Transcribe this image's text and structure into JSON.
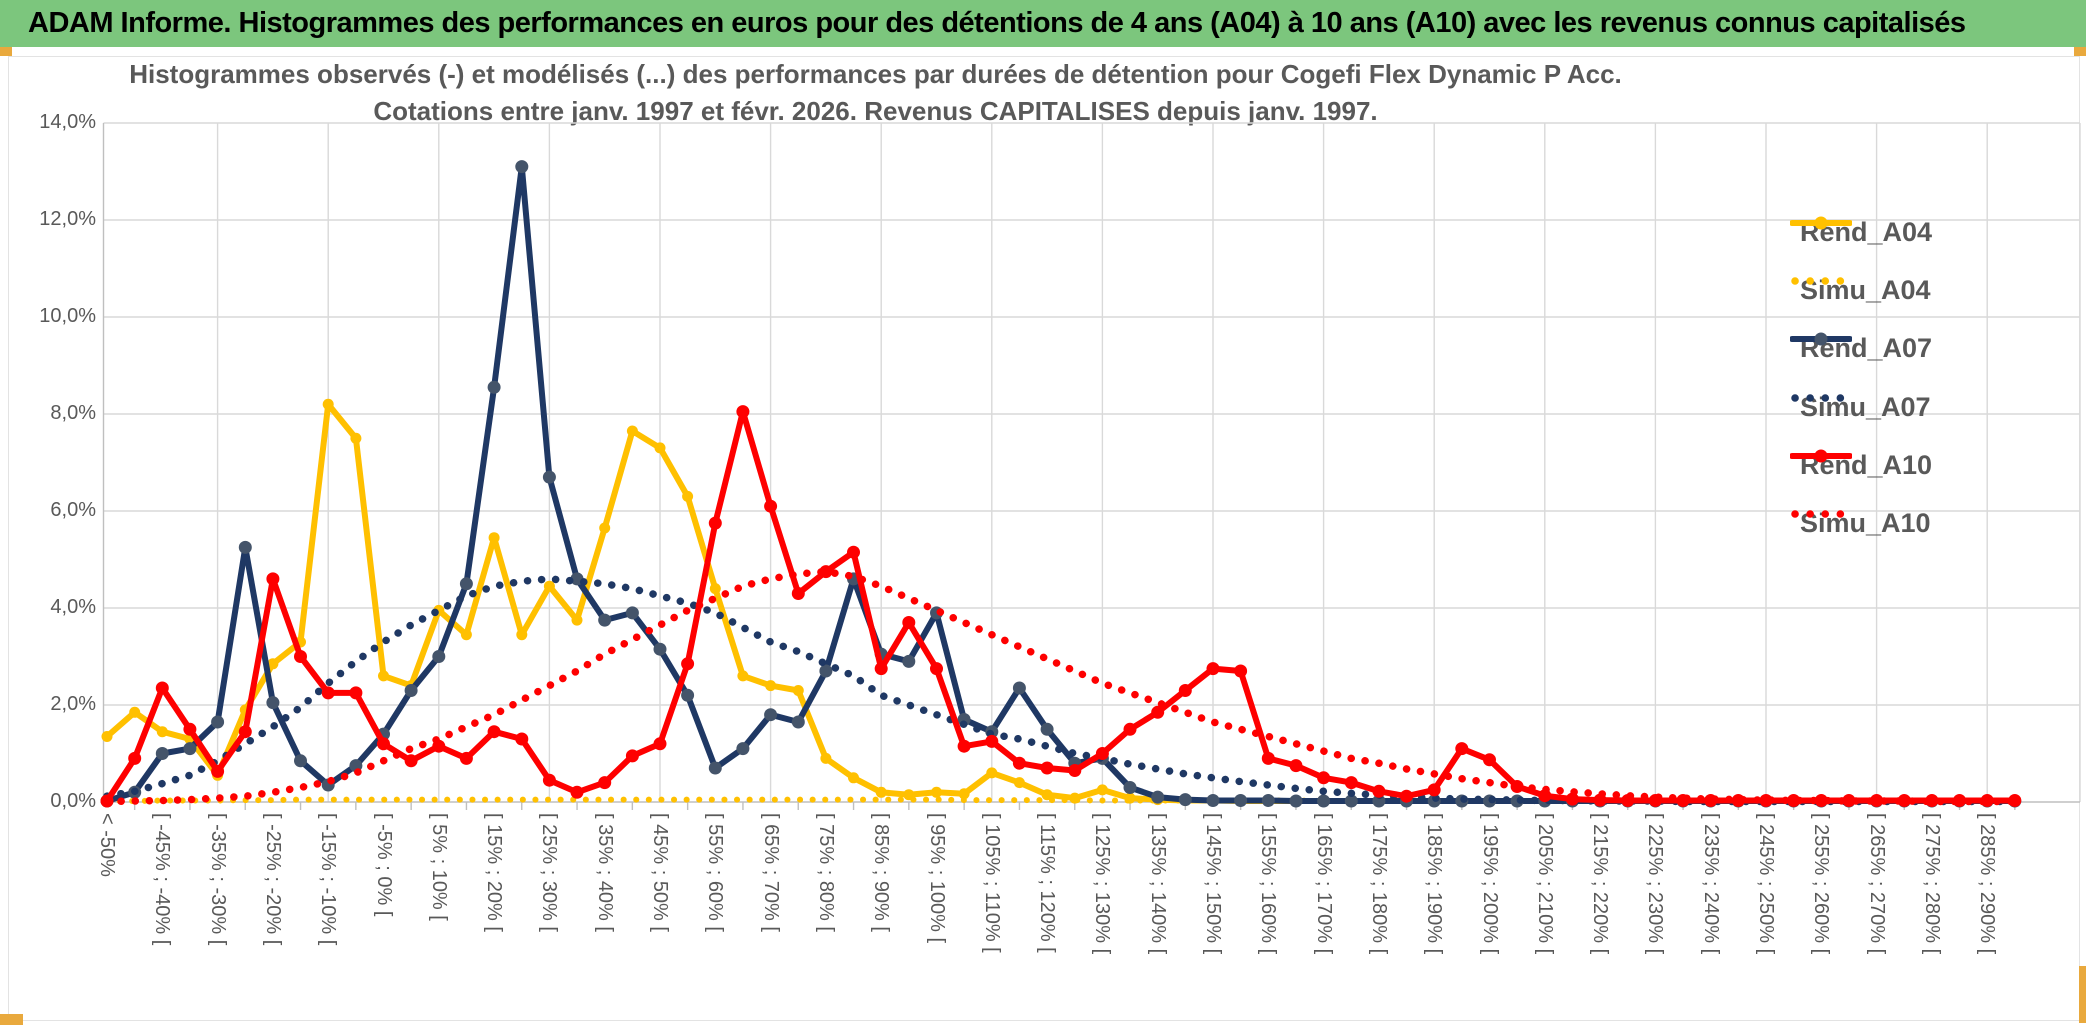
{
  "banner": {
    "title": "ADAM Informe. Histogrammes des performances en euros pour des détentions de 4 ans (A04) à 10 ans (A10) avec les revenus connus capitalisés"
  },
  "chart_data": {
    "type": "line",
    "title_line1": "Histogrammes observés (-) et modélisés (...) des performances par durées de détention pour Cogefi Flex Dynamic P Acc.",
    "title_line2": "Cotations entre janv. 1997 et févr. 2026. Revenus CAPITALISES depuis janv. 1997.",
    "ylabel": "",
    "xlabel": "",
    "ylim": [
      0,
      14
    ],
    "grid": true,
    "legend_position": "right",
    "y_tick_labels": [
      "0,0%",
      "2,0%",
      "4,0%",
      "6,0%",
      "8,0%",
      "10,0%",
      "12,0%",
      "14,0%"
    ],
    "x_tick_labels": [
      "< -50%",
      "[ -45% ; -40% [",
      "[ -35% ; -30% [",
      "[ -25% ; -20% [",
      "[ -15% ; -10% [",
      "[ -5% ; 0% [",
      "[ 5% ; 10% [",
      "[ 15% ; 20% [",
      "[ 25% ; 30% [",
      "[ 35% ; 40% [",
      "[ 45% ; 50% [",
      "[ 55% ; 60% [",
      "[ 65% ; 70% [",
      "[ 75% ; 80% [",
      "[ 85% ; 90% [",
      "[ 95% ; 100% [",
      "[ 105% ; 110% [",
      "[ 115% ; 120% [",
      "[ 125% ; 130% [",
      "[ 135% ; 140% [",
      "[ 145% ; 150% [",
      "[ 155% ; 160% [",
      "[ 165% ; 170% [",
      "[ 175% ; 180% [",
      "[ 185% ; 190% [",
      "[ 195% ; 200% [",
      "[ 205% ; 210% [",
      "[ 215% ; 220% [",
      "[ 225% ; 230% [",
      "[ 235% ; 240% [",
      "[ 245% ; 250% [",
      "[ 255% ; 260% [",
      "[ 265% ; 270% [",
      "[ 275% ; 280% [",
      "[ 285% ; 290% ["
    ],
    "bins_total": 70,
    "legend": [
      {
        "label": "Rend_A04"
      },
      {
        "label": "Simu_A04"
      },
      {
        "label": "Rend_A07"
      },
      {
        "label": "Simu_A07"
      },
      {
        "label": "Rend_A10"
      },
      {
        "label": "Simu_A10"
      }
    ],
    "series": [
      {
        "name": "Rend_A04",
        "style": "solid",
        "color": "#FFC000",
        "marker_color": "#FFC000",
        "values": [
          1.35,
          1.85,
          1.45,
          1.3,
          0.55,
          1.9,
          2.85,
          3.3,
          8.2,
          7.5,
          2.6,
          2.4,
          3.95,
          3.45,
          5.45,
          3.45,
          4.45,
          3.75,
          5.65,
          7.65,
          7.3,
          6.3,
          4.4,
          2.6,
          2.4,
          2.3,
          0.9,
          0.5,
          0.2,
          0.15,
          0.2,
          0.17,
          0.6,
          0.4,
          0.15,
          0.08,
          0.25,
          0.08,
          0.05,
          0.03,
          0.03,
          0.02,
          0.02,
          0.02,
          0.02,
          0.02,
          0.02,
          0.02,
          0.02,
          0.02,
          0.02,
          0.02,
          0.02,
          0.02,
          0.02,
          0.02,
          0.02,
          0.02,
          0.02,
          0.02,
          0.02,
          0.02,
          0.02,
          0.02,
          0.02,
          0.02,
          0.02,
          0.02,
          0.02,
          0.02
        ]
      },
      {
        "name": "Simu_A04",
        "style": "dotted",
        "color": "#FFC000",
        "values": [
          0.02,
          0.02,
          0.03,
          0.03,
          0.03,
          0.04,
          0.04,
          0.05,
          0.05,
          0.05,
          0.05,
          0.05,
          0.05,
          0.05,
          0.05,
          0.05,
          0.05,
          0.05,
          0.05,
          0.05,
          0.05,
          0.05,
          0.05,
          0.05,
          0.05,
          0.05,
          0.05,
          0.05,
          0.05,
          0.05,
          0.05,
          0.04,
          0.04,
          0.04,
          0.04,
          0.04,
          0.03,
          0.03,
          0.03,
          0.03,
          0.03,
          0.03,
          0.03,
          0.03,
          0.02,
          0.02,
          0.02,
          0.02,
          0.02,
          0.02,
          0.02,
          0.02,
          0.02,
          0.02,
          0.02,
          0.02,
          0.02,
          0.02,
          0.02,
          0.02,
          0.02,
          0.02,
          0.02,
          0.02,
          0.02,
          0.02,
          0.02,
          0.02,
          0.02,
          0.02
        ]
      },
      {
        "name": "Rend_A07",
        "style": "solid",
        "color": "#1F3864",
        "marker_color": "#44546A",
        "values": [
          0.02,
          0.2,
          1.0,
          1.1,
          1.65,
          5.25,
          2.05,
          0.85,
          0.35,
          0.75,
          1.4,
          2.3,
          3.0,
          4.5,
          8.55,
          13.1,
          6.7,
          4.6,
          3.75,
          3.9,
          3.15,
          2.2,
          0.7,
          1.1,
          1.8,
          1.65,
          2.7,
          4.6,
          3.05,
          2.9,
          3.9,
          1.7,
          1.45,
          2.35,
          1.5,
          0.8,
          0.9,
          0.3,
          0.1,
          0.05,
          0.03,
          0.03,
          0.03,
          0.02,
          0.02,
          0.02,
          0.02,
          0.02,
          0.02,
          0.02,
          0.02,
          0.02,
          0.02,
          0.02,
          0.02,
          0.02,
          0.02,
          0.02,
          0.02,
          0.02,
          0.02,
          0.02,
          0.02,
          0.02,
          0.02,
          0.02,
          0.02,
          0.02,
          0.02,
          0.02
        ]
      },
      {
        "name": "Simu_A07",
        "style": "dotted",
        "color": "#1F3864",
        "values": [
          0.12,
          0.22,
          0.38,
          0.55,
          0.85,
          1.2,
          1.55,
          1.95,
          2.45,
          2.9,
          3.3,
          3.65,
          3.95,
          4.25,
          4.45,
          4.55,
          4.6,
          4.55,
          4.5,
          4.4,
          4.25,
          4.1,
          3.9,
          3.6,
          3.3,
          3.1,
          2.85,
          2.6,
          2.2,
          2.0,
          1.8,
          1.6,
          1.4,
          1.3,
          1.15,
          1.0,
          0.9,
          0.78,
          0.68,
          0.58,
          0.5,
          0.42,
          0.35,
          0.28,
          0.22,
          0.18,
          0.14,
          0.11,
          0.08,
          0.06,
          0.05,
          0.04,
          0.03,
          0.03,
          0.02,
          0.02,
          0.02,
          0.01,
          0.01,
          0.01,
          0.01,
          0.01,
          0.01,
          0.01,
          0.01,
          0.01,
          0.01,
          0.01,
          0.01,
          0.01
        ]
      },
      {
        "name": "Rend_A10",
        "style": "solid",
        "color": "#FE0000",
        "marker_color": "#FE0000",
        "values": [
          0.02,
          0.9,
          2.35,
          1.5,
          0.63,
          1.45,
          4.6,
          3.0,
          2.25,
          2.25,
          1.2,
          0.85,
          1.15,
          0.9,
          1.45,
          1.3,
          0.45,
          0.2,
          0.4,
          0.95,
          1.2,
          2.85,
          5.75,
          8.05,
          6.1,
          4.3,
          4.75,
          5.15,
          2.75,
          3.7,
          2.75,
          1.15,
          1.25,
          0.8,
          0.7,
          0.65,
          1.0,
          1.5,
          1.85,
          2.3,
          2.75,
          2.7,
          0.9,
          0.75,
          0.5,
          0.4,
          0.22,
          0.12,
          0.25,
          1.1,
          0.87,
          0.32,
          0.13,
          0.06,
          0.04,
          0.03,
          0.03,
          0.03,
          0.03,
          0.03,
          0.03,
          0.03,
          0.03,
          0.03,
          0.03,
          0.03,
          0.03,
          0.03,
          0.03,
          0.03
        ]
      },
      {
        "name": "Simu_A10",
        "style": "dotted",
        "color": "#FE0000",
        "values": [
          0.01,
          0.02,
          0.03,
          0.05,
          0.08,
          0.12,
          0.2,
          0.3,
          0.42,
          0.6,
          0.85,
          1.1,
          1.3,
          1.55,
          1.8,
          2.1,
          2.4,
          2.7,
          3.05,
          3.35,
          3.65,
          3.95,
          4.2,
          4.45,
          4.6,
          4.7,
          4.75,
          4.65,
          4.45,
          4.2,
          3.95,
          3.7,
          3.45,
          3.2,
          2.95,
          2.7,
          2.45,
          2.25,
          2.05,
          1.85,
          1.65,
          1.5,
          1.35,
          1.2,
          1.05,
          0.9,
          0.8,
          0.68,
          0.58,
          0.48,
          0.4,
          0.32,
          0.26,
          0.21,
          0.17,
          0.13,
          0.1,
          0.08,
          0.06,
          0.05,
          0.04,
          0.03,
          0.03,
          0.02,
          0.02,
          0.02,
          0.01,
          0.01,
          0.01,
          0.01
        ]
      }
    ]
  },
  "colors": {
    "banner_bg": "#7CC67D",
    "accent_gold": "#E9A93D",
    "grid": "#D9D9D9",
    "axis": "#BFBFBF",
    "text_gray": "#595959"
  }
}
